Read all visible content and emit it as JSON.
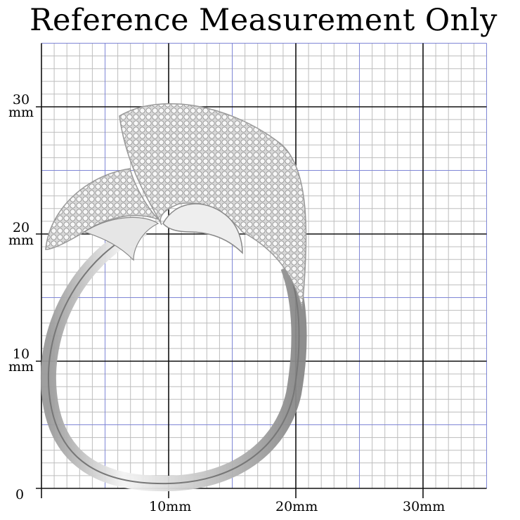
{
  "title": "Reference Measurement Only",
  "grid": {
    "unit": "mm",
    "x_max_mm": 35,
    "y_max_mm": 35,
    "minor_color": "#bdbdbd",
    "mid_color": "#7f86d6",
    "major_color": "#111111"
  },
  "axis": {
    "origin": "0",
    "x_labels": [
      "10mm",
      "20mm",
      "30mm"
    ],
    "y_labels": [
      {
        "num": "30",
        "unit": "mm"
      },
      {
        "num": "20",
        "unit": "mm"
      },
      {
        "num": "10",
        "unit": "mm"
      }
    ]
  },
  "subject": "pave-set-ring-icon"
}
